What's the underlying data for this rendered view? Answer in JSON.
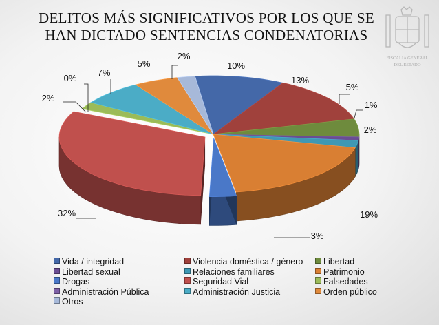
{
  "title": "DELITOS MÁS SIGNIFICATIVOS POR LOS QUE SE HAN DICTADO SENTENCIAS CONDENATORIAS",
  "logo": {
    "text": "FISCALÍA GENERAL DEL ESTADO",
    "icon": "coat-of-arms-icon"
  },
  "chart_data": {
    "type": "pie",
    "style": "3d-exploded",
    "legend_position": "bottom",
    "categories": [
      "Vida / integridad",
      "Violencia doméstica / género",
      "Libertad",
      "Libertad sexual",
      "Relaciones familiares",
      "Patrimonio",
      "Drogas",
      "Seguridad Vial",
      "Falsedades",
      "Administración Pública",
      "Administración Justicia",
      "Orden público",
      "Otros"
    ],
    "values": [
      10,
      13,
      5,
      1,
      2,
      19,
      3,
      32,
      2,
      0,
      7,
      5,
      2
    ],
    "labels": [
      "10%",
      "13%",
      "5%",
      "1%",
      "2%",
      "19%",
      "3%",
      "32%",
      "2%",
      "0%",
      "7%",
      "5%",
      "2%"
    ],
    "colors": [
      "#4468a8",
      "#a0413c",
      "#6e8b3d",
      "#6a4d93",
      "#3f98b4",
      "#d97f33",
      "#4a78c8",
      "#c0504d",
      "#9bbb59",
      "#7d60a6",
      "#4bacc6",
      "#e08a3c",
      "#a7b9d9"
    ]
  }
}
